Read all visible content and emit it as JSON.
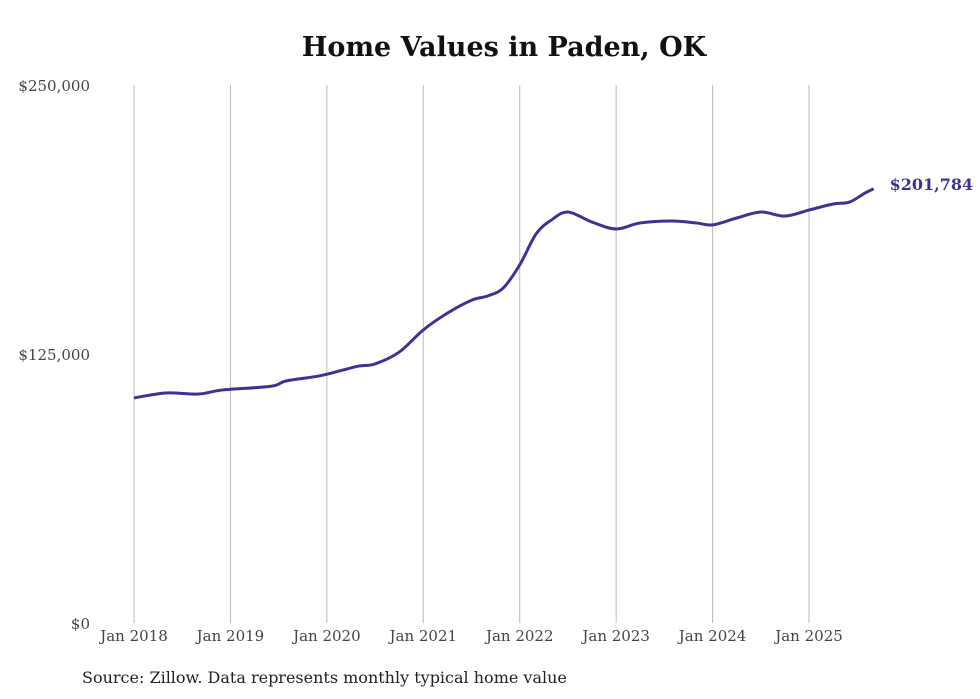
{
  "chart_data": {
    "type": "line",
    "title": "Home Values in Paden, OK",
    "xlabel": "",
    "ylabel": "",
    "ylim": [
      0,
      250000
    ],
    "xlim": [
      2018.0,
      2025.75
    ],
    "y_ticks": [
      {
        "value": 0,
        "label": "$0"
      },
      {
        "value": 125000,
        "label": "$125,000"
      },
      {
        "value": 250000,
        "label": "$250,000"
      }
    ],
    "x_ticks": [
      {
        "value": 2018,
        "label": "Jan 2018"
      },
      {
        "value": 2019,
        "label": "Jan 2019"
      },
      {
        "value": 2020,
        "label": "Jan 2020"
      },
      {
        "value": 2021,
        "label": "Jan 2021"
      },
      {
        "value": 2022,
        "label": "Jan 2022"
      },
      {
        "value": 2023,
        "label": "Jan 2023"
      },
      {
        "value": 2024,
        "label": "Jan 2024"
      },
      {
        "value": 2025,
        "label": "Jan 2025"
      }
    ],
    "grid": "vertical",
    "series": [
      {
        "name": "Typical home value",
        "color": "#3b3494",
        "x": [
          2018.0,
          2018.33,
          2018.67,
          2018.92,
          2019.42,
          2019.58,
          2019.92,
          2020.17,
          2020.33,
          2020.5,
          2020.75,
          2021.0,
          2021.25,
          2021.5,
          2021.67,
          2021.83,
          2022.0,
          2022.17,
          2022.33,
          2022.5,
          2022.75,
          2023.0,
          2023.25,
          2023.58,
          2023.83,
          2024.0,
          2024.25,
          2024.5,
          2024.75,
          2025.0,
          2025.25,
          2025.42,
          2025.58,
          2025.67
        ],
        "values": [
          104600,
          106900,
          106400,
          108300,
          110000,
          112500,
          114800,
          117600,
          119400,
          120400,
          125900,
          136200,
          144000,
          150000,
          152000,
          155700,
          166400,
          180800,
          187300,
          191000,
          186300,
          183100,
          185900,
          186800,
          185900,
          185000,
          188200,
          191000,
          189100,
          191900,
          194700,
          195600,
          199800,
          201784
        ]
      }
    ],
    "end_label": "$201,784"
  },
  "source": "Source: Zillow. Data represents monthly typical home value"
}
